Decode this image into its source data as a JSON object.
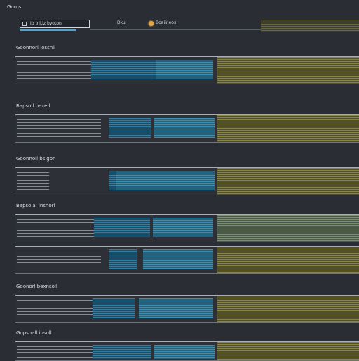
{
  "app": {
    "title": "Goros"
  },
  "search": {
    "value": "Ib b itiz byoton"
  },
  "toggle": {
    "label_left": "Dku",
    "label_right": "Boaiineos"
  },
  "sections": [
    {
      "title": "Goonnorl iossnll"
    },
    {
      "title": "Bapsoil bexell"
    },
    {
      "title": "Goonnoll bsigon"
    },
    {
      "title": "Bapsoial insnorl"
    },
    {
      "title": "Goonorl bexnsoll"
    },
    {
      "title": "Gopsoall insoll"
    }
  ],
  "colors": {
    "background": "#2a2d33",
    "accent_cyan": "#4ca7c9",
    "accent_yellow": "#8a8542",
    "toggle_knob": "#e2a64a"
  }
}
